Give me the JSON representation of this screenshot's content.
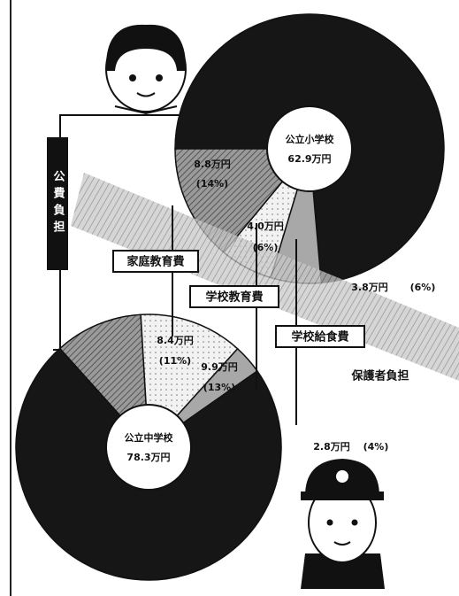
{
  "chart_data": {
    "type": "pie",
    "categories": [
      "公費負担",
      "家庭教育費",
      "学校教育費",
      "学校給食費"
    ],
    "group_label": "保護者負担",
    "colors": [
      "#161616",
      "#7a7a7a",
      "#eeeeee",
      "#a8a8a8"
    ],
    "pies": [
      {
        "label": "公立小学校",
        "total": 62.9,
        "total_label": "62.9万円",
        "values": [
          46.3,
          8.8,
          4.0,
          3.8
        ],
        "value_labels": [
          null,
          "8.8万円",
          "4.0万円",
          "3.8万円"
        ],
        "percents": [
          null,
          14,
          6,
          6
        ],
        "percent_labels": [
          null,
          "(14%)",
          "(6%)",
          "(6%)"
        ]
      },
      {
        "label": "公立中学校",
        "total": 78.3,
        "total_label": "78.3万円",
        "values": [
          57.2,
          8.4,
          9.9,
          2.8
        ],
        "value_labels": [
          null,
          "8.4万円",
          "9.9万円",
          "2.8万円"
        ],
        "percents": [
          null,
          11,
          13,
          4
        ],
        "percent_labels": [
          null,
          "(11%)",
          "(13%)",
          "(4%)"
        ]
      }
    ]
  }
}
